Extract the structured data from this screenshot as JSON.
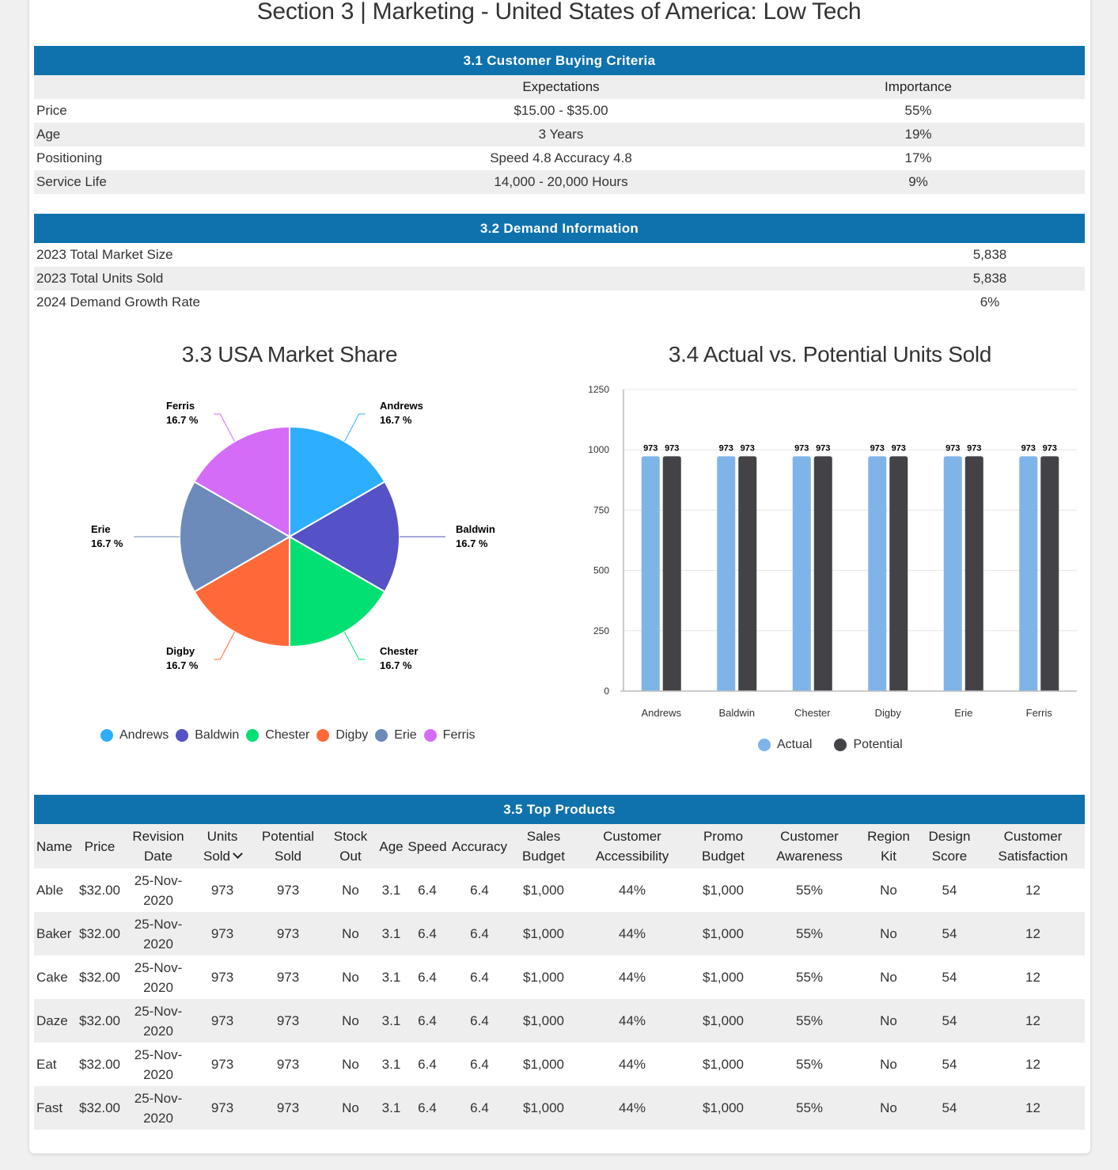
{
  "page_title": "Section 3 | Marketing - United States of America: Low Tech",
  "criteria": {
    "title": "3.1 Customer Buying Criteria",
    "columns": [
      "",
      "Expectations",
      "Importance"
    ],
    "rows": [
      {
        "label": "Price",
        "expectation": "$15.00 - $35.00",
        "importance": "55%"
      },
      {
        "label": "Age",
        "expectation": "3 Years",
        "importance": "19%"
      },
      {
        "label": "Positioning",
        "expectation": "Speed 4.8 Accuracy 4.8",
        "importance": "17%"
      },
      {
        "label": "Service Life",
        "expectation": "14,000 - 20,000 Hours",
        "importance": "9%"
      }
    ]
  },
  "demand": {
    "title": "3.2 Demand Information",
    "rows": [
      {
        "label": "2023 Total Market Size",
        "value": "5,838"
      },
      {
        "label": "2023 Total Units Sold",
        "value": "5,838"
      },
      {
        "label": "2024 Demand Growth Rate",
        "value": "6%"
      }
    ]
  },
  "chart_data": [
    {
      "type": "pie",
      "title": "3.3 USA Market Share",
      "categories": [
        "Andrews",
        "Baldwin",
        "Chester",
        "Digby",
        "Erie",
        "Ferris"
      ],
      "values": [
        16.7,
        16.7,
        16.7,
        16.7,
        16.7,
        16.7
      ],
      "labels": [
        "16.7 %",
        "16.7 %",
        "16.7 %",
        "16.7 %",
        "16.7 %",
        "16.7 %"
      ],
      "colors": [
        "#2eaefe",
        "#5551c6",
        "#02e073",
        "#ff6a38",
        "#6c8aba",
        "#d56cf8"
      ],
      "legend": "bottom"
    },
    {
      "type": "bar",
      "title": "3.4 Actual vs. Potential Units Sold",
      "categories": [
        "Andrews",
        "Baldwin",
        "Chester",
        "Digby",
        "Erie",
        "Ferris"
      ],
      "series": [
        {
          "name": "Actual",
          "values": [
            973,
            973,
            973,
            973,
            973,
            973
          ],
          "color": "#7fb4e9"
        },
        {
          "name": "Potential",
          "values": [
            973,
            973,
            973,
            973,
            973,
            973
          ],
          "color": "#434347"
        }
      ],
      "yticks": [
        0,
        250,
        500,
        750,
        1000,
        1250
      ],
      "ylim": [
        0,
        1250
      ],
      "grid": true,
      "legend": "bottom"
    }
  ],
  "products": {
    "title": "3.5 Top Products",
    "columns": [
      [
        "Name"
      ],
      [
        "Price"
      ],
      [
        "Revision",
        "Date"
      ],
      [
        "Units",
        "Sold"
      ],
      [
        "Potential",
        "Sold"
      ],
      [
        "Stock",
        "Out"
      ],
      [
        "Age"
      ],
      [
        "Speed"
      ],
      [
        "Accuracy"
      ],
      [
        "Sales",
        "Budget"
      ],
      [
        "Customer",
        "Accessibility"
      ],
      [
        "Promo",
        "Budget"
      ],
      [
        "Customer",
        "Awareness"
      ],
      [
        "Region",
        "Kit"
      ],
      [
        "Design",
        "Score"
      ],
      [
        "Customer",
        "Satisfaction"
      ]
    ],
    "sort_icon": "chevron-down-icon",
    "rows": [
      [
        "Able",
        "$32.00",
        [
          "25-Nov-",
          "2020"
        ],
        "973",
        "973",
        "No",
        "3.1",
        "6.4",
        "6.4",
        "$1,000",
        "44%",
        "$1,000",
        "55%",
        "No",
        "54",
        "12"
      ],
      [
        "Baker",
        "$32.00",
        [
          "25-Nov-",
          "2020"
        ],
        "973",
        "973",
        "No",
        "3.1",
        "6.4",
        "6.4",
        "$1,000",
        "44%",
        "$1,000",
        "55%",
        "No",
        "54",
        "12"
      ],
      [
        "Cake",
        "$32.00",
        [
          "25-Nov-",
          "2020"
        ],
        "973",
        "973",
        "No",
        "3.1",
        "6.4",
        "6.4",
        "$1,000",
        "44%",
        "$1,000",
        "55%",
        "No",
        "54",
        "12"
      ],
      [
        "Daze",
        "$32.00",
        [
          "25-Nov-",
          "2020"
        ],
        "973",
        "973",
        "No",
        "3.1",
        "6.4",
        "6.4",
        "$1,000",
        "44%",
        "$1,000",
        "55%",
        "No",
        "54",
        "12"
      ],
      [
        "Eat",
        "$32.00",
        [
          "25-Nov-",
          "2020"
        ],
        "973",
        "973",
        "No",
        "3.1",
        "6.4",
        "6.4",
        "$1,000",
        "44%",
        "$1,000",
        "55%",
        "No",
        "54",
        "12"
      ],
      [
        "Fast",
        "$32.00",
        [
          "25-Nov-",
          "2020"
        ],
        "973",
        "973",
        "No",
        "3.1",
        "6.4",
        "6.4",
        "$1,000",
        "44%",
        "$1,000",
        "55%",
        "No",
        "54",
        "12"
      ]
    ]
  }
}
